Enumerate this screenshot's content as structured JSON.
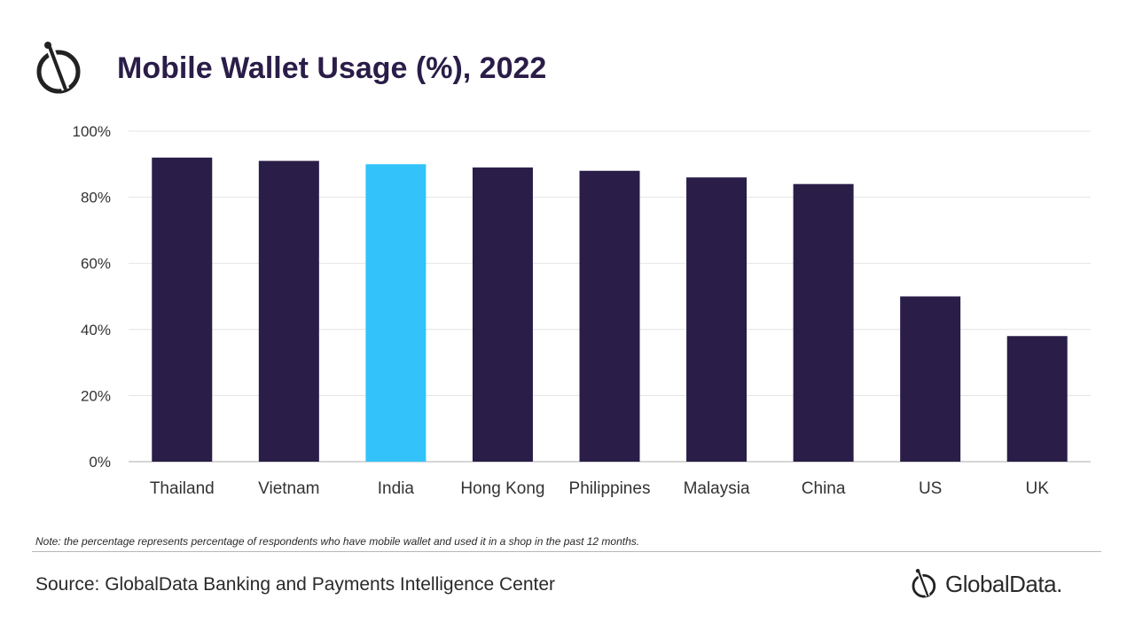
{
  "header": {
    "title": "Mobile Wallet Usage (%), 2022"
  },
  "colors": {
    "bar": "#2a1d48",
    "highlight": "#33c3fa",
    "grid": "#e3e3e3",
    "text": "#2a2a2a"
  },
  "chart_data": {
    "type": "bar",
    "title": "Mobile Wallet Usage (%), 2022",
    "xlabel": "",
    "ylabel": "",
    "categories": [
      "Thailand",
      "Vietnam",
      "India",
      "Hong Kong",
      "Philippines",
      "Malaysia",
      "China",
      "US",
      "UK"
    ],
    "values": [
      92,
      91,
      90,
      89,
      88,
      86,
      84,
      50,
      38
    ],
    "highlighted_category": "India",
    "ylim": [
      0,
      100
    ],
    "yticks": [
      0,
      20,
      40,
      60,
      80,
      100
    ],
    "ytick_labels": [
      "0%",
      "20%",
      "40%",
      "60%",
      "80%",
      "100%"
    ],
    "grid": true,
    "legend": false
  },
  "footer": {
    "note": "Note: the percentage represents percentage of respondents who have mobile wallet and used it in a shop in the past 12 months.",
    "source": "Source: GlobalData Banking and Payments Intelligence Center",
    "brand": "GlobalData."
  },
  "icons": {
    "logo": "globaldata-logo-icon"
  }
}
